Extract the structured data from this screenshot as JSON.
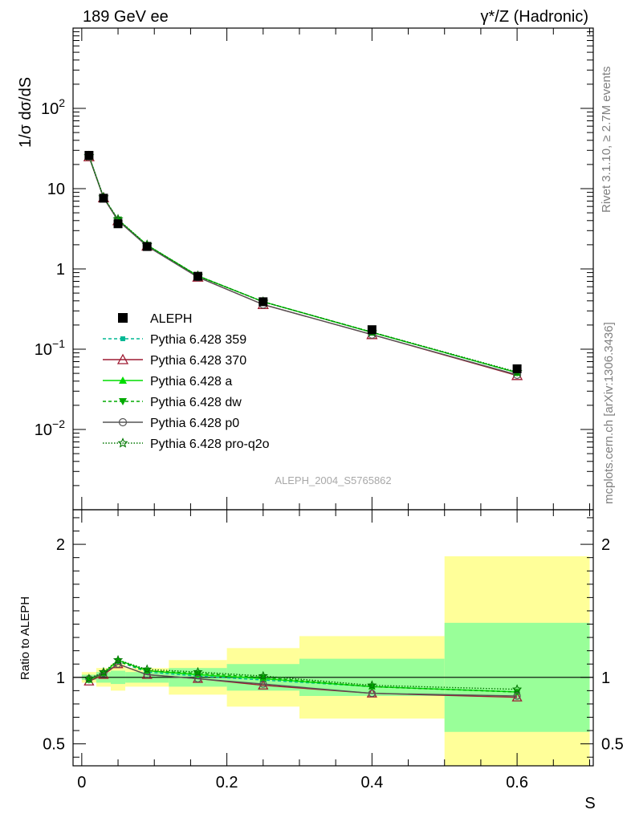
{
  "header": {
    "left": "189 GeV ee",
    "right": "γ*/Z (Hadronic)"
  },
  "side_labels": {
    "rivet": "Rivet 3.1.10, ≥ 2.7M events",
    "mcplots": "mcplots.cern.ch [arXiv:1306.3436]"
  },
  "watermark": "ALEPH_2004_S5765862",
  "chart_data": [
    {
      "type": "line",
      "panel": "main",
      "ylabel": "1/σ dσ/dS",
      "yscale": "log",
      "ylim": [
        0.001,
        1000
      ],
      "xlim": [
        -0.012,
        0.705
      ],
      "yticks": [
        {
          "value": 0.01,
          "base": "10",
          "exp": "−2"
        },
        {
          "value": 0.1,
          "base": "10",
          "exp": "−1"
        },
        {
          "value": 1,
          "label": "1"
        },
        {
          "value": 10,
          "label": "10"
        },
        {
          "value": 100,
          "base": "10",
          "exp": "2"
        }
      ],
      "data_points": {
        "name": "ALEPH",
        "color": "#000000",
        "x": [
          0.01,
          0.03,
          0.05,
          0.09,
          0.16,
          0.25,
          0.4,
          0.6
        ],
        "y": [
          26.0,
          7.6,
          3.65,
          1.9,
          0.81,
          0.39,
          0.175,
          0.057
        ]
      },
      "series": [
        {
          "name": "Pythia 6.428 359",
          "color": "#00b894",
          "dash": "4,3",
          "marker": "square-small",
          "x": [
            0.01,
            0.03,
            0.05,
            0.09,
            0.16,
            0.25,
            0.4,
            0.6
          ],
          "y": [
            25.3,
            7.75,
            4.05,
            1.96,
            0.82,
            0.39,
            0.162,
            0.051
          ]
        },
        {
          "name": "Pythia 6.428 370",
          "color": "#9e1b32",
          "dash": "",
          "marker": "triangle-open",
          "x": [
            0.01,
            0.03,
            0.05,
            0.09,
            0.16,
            0.25,
            0.4,
            0.6
          ],
          "y": [
            25.0,
            7.7,
            4.0,
            1.93,
            0.79,
            0.36,
            0.152,
            0.047
          ]
        },
        {
          "name": "Pythia 6.428 a",
          "color": "#00dd00",
          "dash": "",
          "marker": "triangle-filled",
          "x": [
            0.01,
            0.03,
            0.05,
            0.09,
            0.16,
            0.25,
            0.4,
            0.6
          ],
          "y": [
            25.4,
            7.75,
            4.1,
            1.98,
            0.82,
            0.39,
            0.162,
            0.051
          ]
        },
        {
          "name": "Pythia 6.428 dw",
          "color": "#00aa00",
          "dash": "4,3",
          "marker": "triangle-down-filled",
          "x": [
            0.01,
            0.03,
            0.05,
            0.09,
            0.16,
            0.25,
            0.4,
            0.6
          ],
          "y": [
            25.3,
            7.8,
            4.1,
            1.98,
            0.82,
            0.39,
            0.163,
            0.051
          ]
        },
        {
          "name": "Pythia 6.428 p0",
          "color": "#555555",
          "dash": "",
          "marker": "circle-open",
          "x": [
            0.01,
            0.03,
            0.05,
            0.09,
            0.16,
            0.25,
            0.4,
            0.6
          ],
          "y": [
            25.1,
            7.75,
            4.0,
            1.92,
            0.79,
            0.36,
            0.152,
            0.048
          ]
        },
        {
          "name": "Pythia 6.428 pro-q2o",
          "color": "#007700",
          "dash": "1.5,2",
          "marker": "star-open",
          "x": [
            0.01,
            0.03,
            0.05,
            0.09,
            0.16,
            0.25,
            0.4,
            0.6
          ],
          "y": [
            25.4,
            7.8,
            4.15,
            1.99,
            0.82,
            0.39,
            0.163,
            0.052
          ]
        }
      ],
      "legend_position": "left-middle"
    },
    {
      "type": "line",
      "panel": "ratio",
      "ylabel": "Ratio to ALEPH",
      "xlabel": "S",
      "ylim": [
        0.335,
        2.26
      ],
      "xlim": [
        -0.012,
        0.705
      ],
      "xticks": [
        0,
        0.2,
        0.4,
        0.6
      ],
      "yticks": [
        0.5,
        1,
        2
      ],
      "uncertainty_bands": [
        {
          "x0": 0.0,
          "x1": 0.02,
          "inner": [
            0.98,
            1.02
          ],
          "outer": [
            0.96,
            1.04
          ]
        },
        {
          "x0": 0.02,
          "x1": 0.04,
          "inner": [
            0.96,
            1.04
          ],
          "outer": [
            0.93,
            1.07
          ]
        },
        {
          "x0": 0.04,
          "x1": 0.06,
          "inner": [
            0.95,
            1.05
          ],
          "outer": [
            0.9,
            1.1
          ]
        },
        {
          "x0": 0.06,
          "x1": 0.12,
          "inner": [
            0.96,
            1.04
          ],
          "outer": [
            0.93,
            1.07
          ]
        },
        {
          "x0": 0.12,
          "x1": 0.2,
          "inner": [
            0.93,
            1.07
          ],
          "outer": [
            0.87,
            1.13
          ]
        },
        {
          "x0": 0.2,
          "x1": 0.3,
          "inner": [
            0.9,
            1.1
          ],
          "outer": [
            0.78,
            1.22
          ]
        },
        {
          "x0": 0.3,
          "x1": 0.5,
          "inner": [
            0.86,
            1.14
          ],
          "outer": [
            0.69,
            1.31
          ]
        },
        {
          "x0": 0.5,
          "x1": 0.7,
          "inner": [
            0.59,
            1.41
          ],
          "outer": [
            0.335,
            1.91
          ]
        }
      ],
      "reference_line": 1.0,
      "series": [
        {
          "name": "Pythia 6.428 359",
          "x": [
            0.01,
            0.03,
            0.05,
            0.09,
            0.16,
            0.25,
            0.4,
            0.6
          ],
          "y": [
            0.98,
            1.03,
            1.12,
            1.04,
            1.01,
            0.98,
            0.93,
            0.89
          ]
        },
        {
          "name": "Pythia 6.428 370",
          "x": [
            0.01,
            0.03,
            0.05,
            0.09,
            0.16,
            0.25,
            0.4,
            0.6
          ],
          "y": [
            0.97,
            1.02,
            1.1,
            1.02,
            0.99,
            0.94,
            0.88,
            0.85
          ]
        },
        {
          "name": "Pythia 6.428 a",
          "x": [
            0.01,
            0.03,
            0.05,
            0.09,
            0.16,
            0.25,
            0.4,
            0.6
          ],
          "y": [
            0.98,
            1.03,
            1.13,
            1.05,
            1.02,
            0.99,
            0.93,
            0.89
          ]
        },
        {
          "name": "Pythia 6.428 dw",
          "x": [
            0.01,
            0.03,
            0.05,
            0.09,
            0.16,
            0.25,
            0.4,
            0.6
          ],
          "y": [
            0.98,
            1.03,
            1.12,
            1.05,
            1.03,
            1.0,
            0.93,
            0.89
          ]
        },
        {
          "name": "Pythia 6.428 p0",
          "x": [
            0.01,
            0.03,
            0.05,
            0.09,
            0.16,
            0.25,
            0.4,
            0.6
          ],
          "y": [
            0.99,
            1.03,
            1.1,
            1.02,
            0.99,
            0.95,
            0.88,
            0.86
          ]
        },
        {
          "name": "Pythia 6.428 pro-q2o",
          "x": [
            0.01,
            0.03,
            0.05,
            0.09,
            0.16,
            0.25,
            0.4,
            0.6
          ],
          "y": [
            0.99,
            1.04,
            1.13,
            1.06,
            1.04,
            1.01,
            0.94,
            0.91
          ]
        }
      ]
    }
  ],
  "colors": {
    "band_inner": "#99ff99",
    "band_outer": "#ffff99",
    "axis": "#000000"
  }
}
